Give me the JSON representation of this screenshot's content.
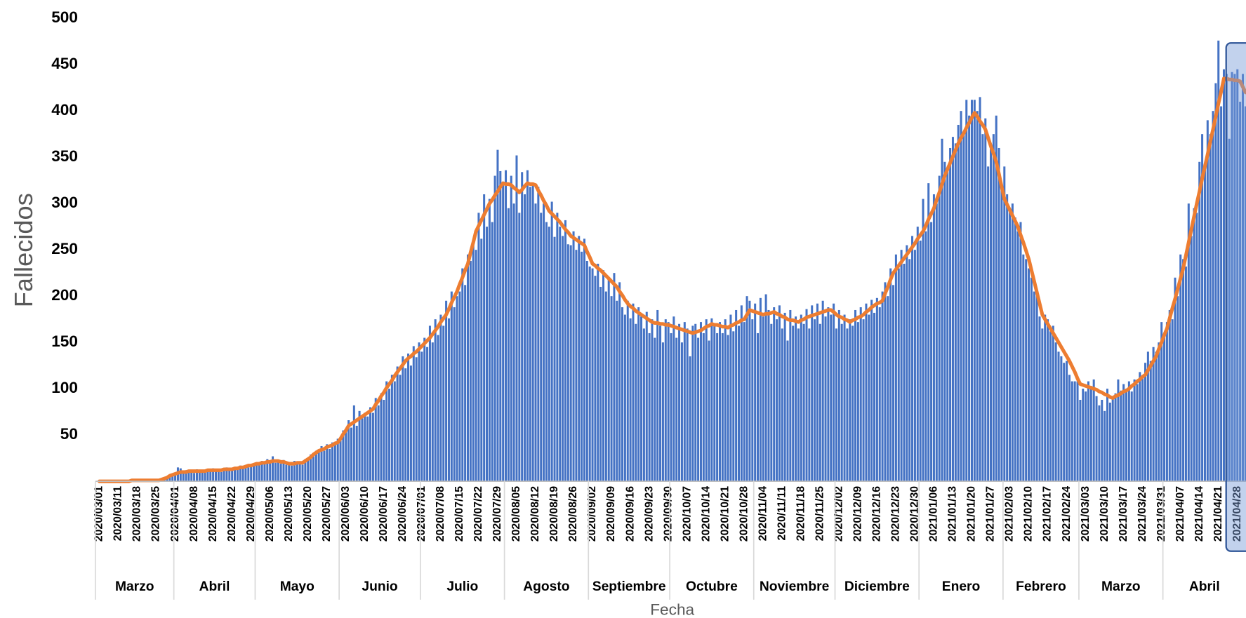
{
  "chart_data": {
    "type": "bar",
    "y_axis_title": "Fallecidos",
    "x_axis_title": "Fecha",
    "month_groups": [
      "Marzo",
      "Abril",
      "Mayo",
      "Junio",
      "Julio",
      "Agosto",
      "Septiembre",
      "Octubre",
      "Noviembre",
      "Diciembre",
      "Enero",
      "Febrero",
      "Marzo",
      "Abril"
    ],
    "categories": [
      "2020/03/01",
      null,
      null,
      null,
      null,
      null,
      null,
      "2020/03/11",
      null,
      null,
      null,
      null,
      null,
      null,
      "2020/03/18",
      null,
      null,
      null,
      null,
      null,
      null,
      "2020/03/25",
      null,
      null,
      null,
      null,
      null,
      null,
      "2020/04/01",
      null,
      null,
      null,
      null,
      null,
      null,
      "2020/04/08",
      null,
      null,
      null,
      null,
      null,
      null,
      "2020/04/15",
      null,
      null,
      null,
      null,
      null,
      null,
      "2020/04/22",
      null,
      null,
      null,
      null,
      null,
      null,
      "2020/04/29",
      null,
      null,
      null,
      null,
      null,
      null,
      "2020/05/06",
      null,
      null,
      null,
      null,
      null,
      null,
      "2020/05/13",
      null,
      null,
      null,
      null,
      null,
      null,
      "2020/05/20",
      null,
      null,
      null,
      null,
      null,
      null,
      "2020/05/27",
      null,
      null,
      null,
      null,
      null,
      null,
      "2020/06/03",
      null,
      null,
      null,
      null,
      null,
      null,
      "2020/06/10",
      null,
      null,
      null,
      null,
      null,
      null,
      "2020/06/17",
      null,
      null,
      null,
      null,
      null,
      null,
      "2020/06/24",
      null,
      null,
      null,
      null,
      null,
      null,
      "2020/07/01",
      null,
      null,
      null,
      null,
      null,
      null,
      "2020/07/08",
      null,
      null,
      null,
      null,
      null,
      null,
      "2020/07/15",
      null,
      null,
      null,
      null,
      null,
      null,
      "2020/07/22",
      null,
      null,
      null,
      null,
      null,
      null,
      "2020/07/29",
      null,
      null,
      null,
      null,
      null,
      null,
      "2020/08/05",
      null,
      null,
      null,
      null,
      null,
      null,
      "2020/08/12",
      null,
      null,
      null,
      null,
      null,
      null,
      "2020/08/19",
      null,
      null,
      null,
      null,
      null,
      null,
      "2020/08/26",
      null,
      null,
      null,
      null,
      null,
      null,
      "2020/09/02",
      null,
      null,
      null,
      null,
      null,
      null,
      "2020/09/09",
      null,
      null,
      null,
      null,
      null,
      null,
      "2020/09/16",
      null,
      null,
      null,
      null,
      null,
      null,
      "2020/09/23",
      null,
      null,
      null,
      null,
      null,
      null,
      "2020/09/30",
      null,
      null,
      null,
      null,
      null,
      null,
      "2020/10/07",
      null,
      null,
      null,
      null,
      null,
      null,
      "2020/10/14",
      null,
      null,
      null,
      null,
      null,
      null,
      "2020/10/21",
      null,
      null,
      null,
      null,
      null,
      null,
      "2020/10/28",
      null,
      null,
      null,
      null,
      null,
      null,
      "2020/11/04",
      null,
      null,
      null,
      null,
      null,
      null,
      "2020/11/11",
      null,
      null,
      null,
      null,
      null,
      null,
      "2020/11/18",
      null,
      null,
      null,
      null,
      null,
      null,
      "2020/11/25",
      null,
      null,
      null,
      null,
      null,
      null,
      "2020/12/02",
      null,
      null,
      null,
      null,
      null,
      null,
      "2020/12/09",
      null,
      null,
      null,
      null,
      null,
      null,
      "2020/12/16",
      null,
      null,
      null,
      null,
      null,
      null,
      "2020/12/23",
      null,
      null,
      null,
      null,
      null,
      null,
      "2020/12/30",
      null,
      null,
      null,
      null,
      null,
      null,
      "2021/01/06",
      null,
      null,
      null,
      null,
      null,
      null,
      "2021/01/13",
      null,
      null,
      null,
      null,
      null,
      null,
      "2021/01/20",
      null,
      null,
      null,
      null,
      null,
      null,
      "2021/01/27",
      null,
      null,
      null,
      null,
      null,
      null,
      "2021/02/03",
      null,
      null,
      null,
      null,
      null,
      null,
      "2021/02/10",
      null,
      null,
      null,
      null,
      null,
      null,
      "2021/02/17",
      null,
      null,
      null,
      null,
      null,
      null,
      "2021/02/24",
      null,
      null,
      null,
      null,
      null,
      null,
      "2021/03/03",
      null,
      null,
      null,
      null,
      null,
      null,
      "2021/03/10",
      null,
      null,
      null,
      null,
      null,
      null,
      "2021/03/17",
      null,
      null,
      null,
      null,
      null,
      null,
      "2021/03/24",
      null,
      null,
      null,
      null,
      null,
      null,
      "2021/03/31",
      null,
      null,
      null,
      null,
      null,
      null,
      "2021/04/07",
      null,
      null,
      null,
      null,
      null,
      null,
      "2021/04/14",
      null,
      null,
      null,
      null,
      null,
      null,
      "2021/04/21",
      null,
      null,
      null,
      null,
      null,
      null,
      "2021/04/28",
      null,
      null,
      null
    ],
    "series": [
      {
        "type": "bar",
        "color": "#4472c4",
        "values": [
          0,
          0,
          0,
          0,
          1,
          0,
          1,
          0,
          1,
          0,
          1,
          1,
          0,
          1,
          2,
          1,
          1,
          2,
          1,
          2,
          1,
          2,
          1,
          3,
          4,
          3,
          7,
          6,
          9,
          15,
          14,
          9,
          12,
          10,
          11,
          9,
          13,
          11,
          10,
          12,
          13,
          11,
          14,
          11,
          12,
          10,
          14,
          15,
          12,
          14,
          15,
          13,
          17,
          14,
          17,
          15,
          18,
          17,
          20,
          18,
          22,
          19,
          24,
          20,
          27,
          20,
          23,
          19,
          23,
          18,
          21,
          17,
          22,
          19,
          21,
          18,
          24,
          23,
          29,
          27,
          33,
          32,
          38,
          33,
          40,
          35,
          42,
          40,
          46,
          44,
          55,
          53,
          66,
          58,
          82,
          60,
          76,
          68,
          74,
          70,
          80,
          74,
          90,
          82,
          95,
          88,
          108,
          100,
          115,
          108,
          124,
          115,
          135,
          122,
          138,
          125,
          146,
          134,
          150,
          140,
          155,
          145,
          168,
          150,
          175,
          158,
          180,
          168,
          195,
          176,
          205,
          188,
          200,
          205,
          230,
          212,
          245,
          238,
          260,
          250,
          290,
          262,
          310,
          275,
          305,
          280,
          330,
          358,
          335,
          320,
          336,
          295,
          330,
          300,
          352,
          290,
          334,
          310,
          336,
          318,
          320,
          300,
          318,
          290,
          300,
          280,
          275,
          302,
          264,
          290,
          275,
          265,
          282,
          256,
          255,
          270,
          250,
          265,
          248,
          262,
          238,
          232,
          230,
          222,
          235,
          210,
          228,
          205,
          220,
          200,
          225,
          195,
          215,
          188,
          180,
          195,
          176,
          192,
          170,
          188,
          178,
          165,
          183,
          160,
          175,
          155,
          185,
          168,
          150,
          175,
          172,
          160,
          178,
          155,
          170,
          150,
          172,
          165,
          135,
          168,
          170,
          155,
          172,
          160,
          175,
          152,
          176,
          170,
          160,
          172,
          160,
          175,
          158,
          180,
          162,
          185,
          168,
          190,
          172,
          200,
          195,
          175,
          192,
          160,
          198,
          178,
          202,
          185,
          170,
          188,
          175,
          190,
          165,
          182,
          152,
          185,
          168,
          178,
          165,
          180,
          170,
          186,
          165,
          190,
          175,
          192,
          170,
          195,
          178,
          188,
          180,
          192,
          165,
          185,
          170,
          180,
          165,
          175,
          168,
          185,
          172,
          188,
          175,
          192,
          180,
          196,
          182,
          198,
          188,
          205,
          215,
          200,
          230,
          212,
          245,
          230,
          250,
          235,
          255,
          240,
          265,
          250,
          275,
          260,
          305,
          270,
          322,
          280,
          310,
          300,
          330,
          370,
          345,
          338,
          360,
          372,
          365,
          385,
          400,
          378,
          412,
          395,
          412,
          412,
          400,
          415,
          375,
          392,
          340,
          365,
          375,
          395,
          360,
          320,
          340,
          310,
          295,
          300,
          285,
          270,
          280,
          245,
          240,
          230,
          220,
          205,
          200,
          178,
          165,
          180,
          175,
          162,
          168,
          150,
          140,
          135,
          128,
          130,
          115,
          108,
          108,
          108,
          88,
          100,
          97,
          108,
          103,
          110,
          92,
          82,
          88,
          76,
          100,
          85,
          90,
          95,
          110,
          98,
          105,
          100,
          108,
          97,
          110,
          105,
          118,
          112,
          128,
          140,
          130,
          145,
          140,
          150,
          172,
          155,
          172,
          185,
          175,
          220,
          200,
          245,
          240,
          232,
          300,
          265,
          295,
          290,
          345,
          375,
          340,
          390,
          375,
          400,
          430,
          476,
          405,
          445,
          440,
          370,
          442,
          440,
          445,
          410,
          440,
          405
        ]
      },
      {
        "type": "line",
        "color": "#ed7d31",
        "values": [
          0,
          0,
          0,
          0,
          0,
          0,
          0,
          0,
          0,
          0,
          0,
          0,
          1,
          1,
          1,
          1,
          1,
          1,
          1,
          1,
          1,
          1,
          1,
          2,
          3,
          4,
          6,
          7,
          8,
          9,
          10,
          10,
          10,
          11,
          11,
          11,
          11,
          11,
          11,
          11,
          12,
          12,
          12,
          12,
          12,
          12,
          13,
          13,
          13,
          13,
          14,
          14,
          15,
          15,
          16,
          17,
          17,
          18,
          19,
          19,
          20,
          20,
          21,
          21,
          22,
          22,
          22,
          21,
          21,
          20,
          19,
          19,
          19,
          20,
          20,
          20,
          22,
          24,
          26,
          29,
          31,
          33,
          34,
          35,
          37,
          38,
          39,
          41,
          42,
          46,
          51,
          55,
          60,
          62,
          64,
          66,
          68,
          70,
          72,
          74,
          76,
          78,
          83,
          87,
          92,
          96,
          101,
          105,
          109,
          114,
          118,
          122,
          126,
          130,
          133,
          135,
          138,
          140,
          143,
          146,
          149,
          152,
          155,
          159,
          163,
          167,
          172,
          176,
          180,
          186,
          193,
          199,
          205,
          213,
          220,
          228,
          235,
          247,
          258,
          270,
          276,
          282,
          288,
          294,
          300,
          304,
          309,
          313,
          318,
          322,
          321,
          321,
          320,
          317,
          315,
          312,
          315,
          319,
          322,
          321,
          321,
          320,
          314,
          309,
          303,
          298,
          292,
          289,
          286,
          283,
          280,
          276,
          272,
          269,
          265,
          263,
          261,
          259,
          257,
          255,
          248,
          242,
          235,
          233,
          230,
          228,
          225,
          222,
          219,
          216,
          213,
          210,
          205,
          201,
          196,
          192,
          189,
          187,
          184,
          182,
          180,
          178,
          176,
          174,
          172,
          171,
          171,
          170,
          170,
          169,
          169,
          168,
          167,
          166,
          165,
          164,
          163,
          162,
          161,
          160,
          161,
          162,
          163,
          165,
          167,
          168,
          170,
          169,
          169,
          168,
          167,
          167,
          166,
          168,
          169,
          171,
          172,
          174,
          175,
          180,
          185,
          184,
          183,
          182,
          181,
          180,
          181,
          181,
          182,
          183,
          181,
          180,
          178,
          177,
          175,
          174,
          174,
          173,
          172,
          174,
          175,
          177,
          178,
          179,
          180,
          181,
          182,
          183,
          184,
          185,
          185,
          183,
          180,
          178,
          177,
          175,
          174,
          172,
          174,
          175,
          177,
          178,
          180,
          183,
          185,
          188,
          190,
          192,
          193,
          195,
          203,
          210,
          218,
          225,
          229,
          233,
          237,
          241,
          245,
          249,
          253,
          257,
          262,
          266,
          270,
          276,
          283,
          289,
          295,
          304,
          312,
          321,
          330,
          337,
          344,
          351,
          358,
          365,
          371,
          376,
          382,
          387,
          393,
          398,
          394,
          389,
          385,
          380,
          371,
          362,
          354,
          345,
          332,
          318,
          305,
          299,
          293,
          287,
          281,
          275,
          266,
          258,
          249,
          240,
          228,
          216,
          204,
          192,
          180,
          175,
          170,
          165,
          160,
          155,
          150,
          145,
          140,
          135,
          130,
          124,
          118,
          111,
          105,
          104,
          103,
          102,
          101,
          100,
          99,
          97,
          96,
          94,
          93,
          91,
          90,
          92,
          93,
          95,
          97,
          98,
          100,
          103,
          105,
          108,
          110,
          113,
          115,
          120,
          125,
          130,
          135,
          143,
          150,
          158,
          165,
          176,
          187,
          197,
          208,
          219,
          230,
          244,
          258,
          272,
          286,
          300,
          313,
          327,
          340,
          353,
          367,
          380,
          394,
          408,
          421,
          435,
          435,
          434,
          434,
          433,
          433,
          432,
          426,
          420
        ]
      }
    ],
    "ylim": [
      0,
      500
    ],
    "yticks": [
      50,
      100,
      150,
      200,
      250,
      300,
      350,
      400,
      450,
      500
    ]
  }
}
